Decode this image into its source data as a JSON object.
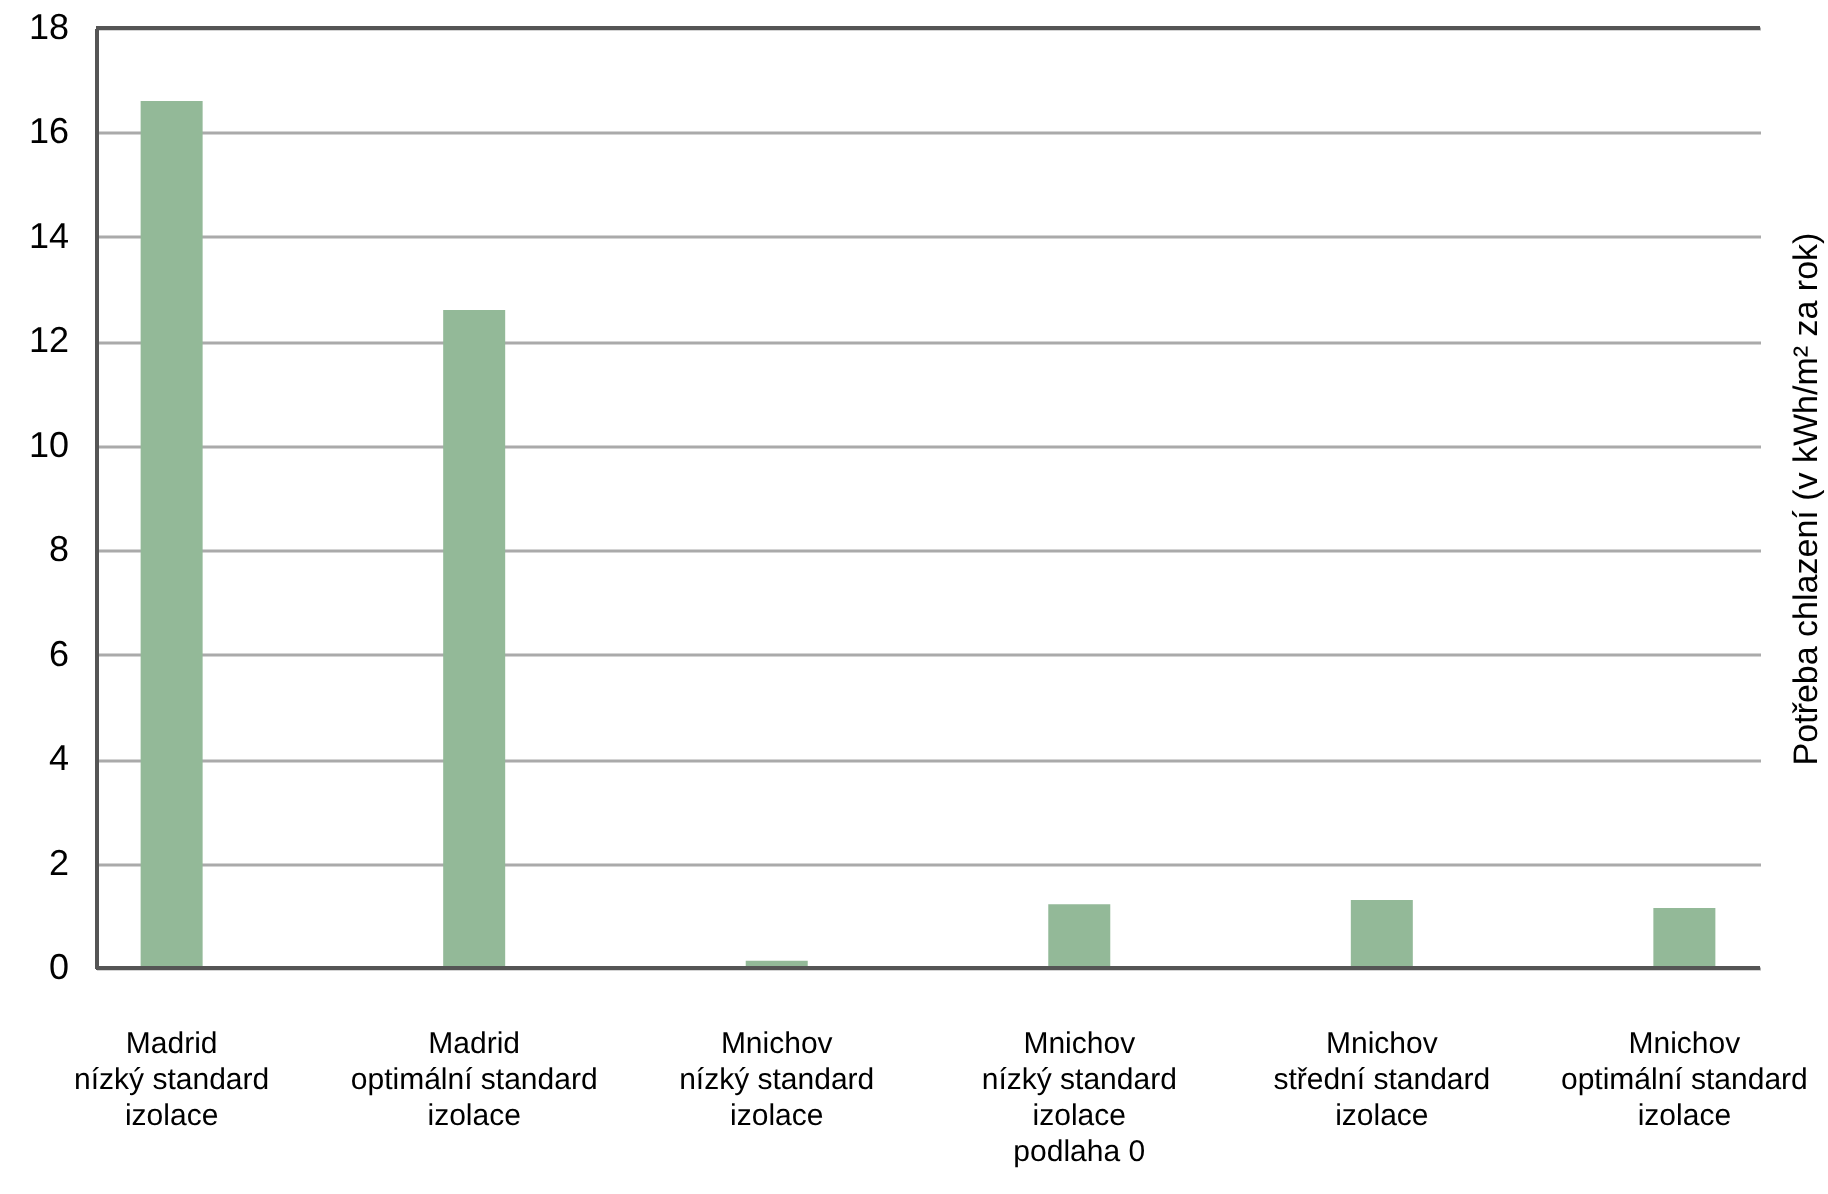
{
  "chart_data": {
    "type": "bar",
    "ylabel": "Potřeba chlazení (v kWh/m² za rok)",
    "categories": [
      "Madrid\nnízký standard\nizolace",
      "Madrid\noptimální standard\nizolace",
      "Mnichov\nnízký standard\nizolace",
      "Mnichov\nnízký  standard\nizolace\npodlaha 0",
      "Mnichov\nstřední standard\nizolace",
      "Mnichov\noptimální standard\nizolace"
    ],
    "values": [
      16.6,
      12.6,
      0.14,
      1.22,
      1.3,
      1.15
    ],
    "color": "#93b998",
    "ylim": [
      0,
      18
    ],
    "yticks": [
      0,
      2,
      4,
      6,
      8,
      10,
      12,
      14,
      16,
      18
    ],
    "grid": "y"
  }
}
